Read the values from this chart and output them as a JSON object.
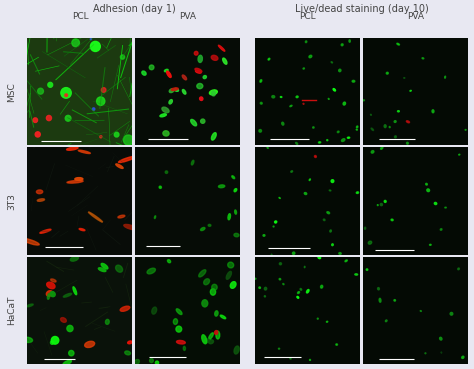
{
  "background_color": "#e8e8f2",
  "title_adhesion": "Adhesion (day 1)",
  "title_live": "Live/dead staining (day 10)",
  "col_labels": [
    "PCL",
    "PVA",
    "PCL",
    "PVA"
  ],
  "row_labels": [
    "MSC",
    "3T3",
    "HaCaT"
  ],
  "figure_width": 4.74,
  "figure_height": 3.69,
  "dpi": 100,
  "label_color": "#444444",
  "header_color": "#444444",
  "label_fontsize": 6.5,
  "header_fontsize": 7.0,
  "col_fontsize": 6.5
}
